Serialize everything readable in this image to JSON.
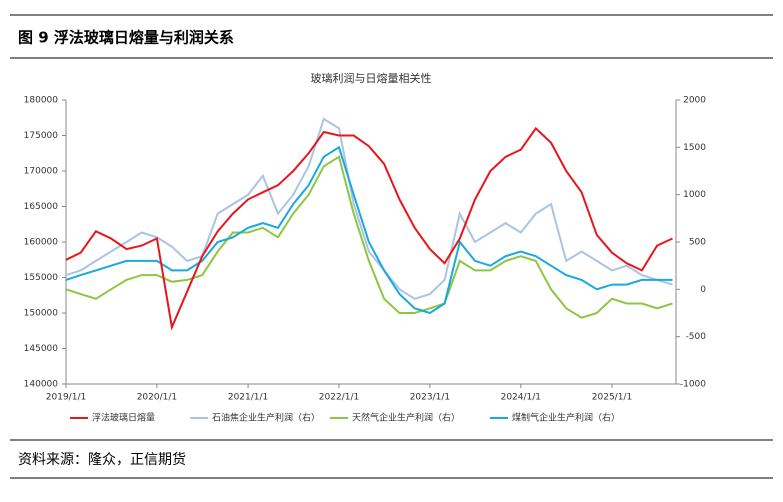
{
  "header": {
    "title": "图 9  浮法玻璃日熔量与利润关系"
  },
  "source": "资料来源：隆众，正信期货",
  "chart_data": {
    "type": "line",
    "title": "玻璃利润与日熔量相关性",
    "x": [
      "2019/1/1",
      "2019/3/1",
      "2019/5/1",
      "2019/7/1",
      "2019/9/1",
      "2019/11/1",
      "2020/1/1",
      "2020/3/1",
      "2020/5/1",
      "2020/7/1",
      "2020/9/1",
      "2020/11/1",
      "2021/1/1",
      "2021/3/1",
      "2021/5/1",
      "2021/7/1",
      "2021/9/1",
      "2021/11/1",
      "2022/1/1",
      "2022/3/1",
      "2022/5/1",
      "2022/7/1",
      "2022/9/1",
      "2022/11/1",
      "2023/1/1",
      "2023/3/1",
      "2023/5/1",
      "2023/7/1",
      "2023/9/1",
      "2023/11/1",
      "2024/1/1",
      "2024/3/1",
      "2024/5/1",
      "2024/7/1",
      "2024/9/1",
      "2024/11/1",
      "2025/1/1",
      "2025/3/1",
      "2025/5/1",
      "2025/7/1",
      "2025/9/1"
    ],
    "xlim": [
      "2019/1/1",
      "2025/9/15"
    ],
    "xticks": [
      "2019/1/1",
      "2020/1/1",
      "2021/1/1",
      "2022/1/1",
      "2023/1/1",
      "2024/1/1",
      "2025/1/1"
    ],
    "ylim": [
      140000,
      180000
    ],
    "yticks": [
      140000,
      145000,
      150000,
      155000,
      160000,
      165000,
      170000,
      175000,
      180000
    ],
    "y2lim": [
      -1000,
      2000
    ],
    "y2ticks": [
      -1000,
      -500,
      0,
      500,
      1000,
      1500,
      2000
    ],
    "series": [
      {
        "name": "浮法玻璃日熔量",
        "color": "#e8161c",
        "values": [
          157500,
          158500,
          161500,
          160500,
          159000,
          159500,
          160500,
          148000,
          153000,
          158000,
          161500,
          164000,
          166000,
          167000,
          168000,
          170000,
          172500,
          175500,
          175000,
          175000,
          173500,
          171000,
          166000,
          162000,
          159000,
          157000,
          160500,
          166000,
          170000,
          172000,
          173000,
          176000,
          174000,
          170000,
          167000,
          161000,
          158500,
          157000,
          156000,
          159500,
          160500
        ]
      },
      {
        "name": "石油焦企业生产利润（右）",
        "color": "#a9c4e4",
        "axis": "y2",
        "values": [
          150,
          200,
          300,
          400,
          500,
          600,
          550,
          450,
          300,
          350,
          800,
          900,
          1000,
          1200,
          800,
          1000,
          1300,
          1800,
          1700,
          900,
          400,
          200,
          0,
          -100,
          -50,
          100,
          800,
          500,
          600,
          700,
          600,
          800,
          900,
          300,
          400,
          300,
          200,
          250,
          150,
          100,
          50
        ]
      },
      {
        "name": "天然气企业生产利润（右）",
        "color": "#8dc63f",
        "axis": "y2",
        "values": [
          0,
          -50,
          -100,
          0,
          100,
          150,
          150,
          80,
          100,
          150,
          400,
          600,
          600,
          650,
          550,
          800,
          1000,
          1300,
          1400,
          800,
          300,
          -100,
          -250,
          -250,
          -200,
          -150,
          300,
          200,
          200,
          300,
          350,
          300,
          0,
          -200,
          -300,
          -250,
          -100,
          -150,
          -150,
          -200,
          -150
        ]
      },
      {
        "name": "煤制气企业生产利润（右）",
        "color": "#19a8e0",
        "axis": "y2",
        "values": [
          100,
          150,
          200,
          250,
          300,
          300,
          300,
          200,
          200,
          300,
          500,
          550,
          650,
          700,
          650,
          900,
          1100,
          1400,
          1500,
          1000,
          500,
          200,
          -50,
          -200,
          -250,
          -150,
          500,
          300,
          250,
          350,
          400,
          350,
          250,
          150,
          100,
          0,
          50,
          50,
          100,
          100,
          100
        ]
      }
    ]
  }
}
